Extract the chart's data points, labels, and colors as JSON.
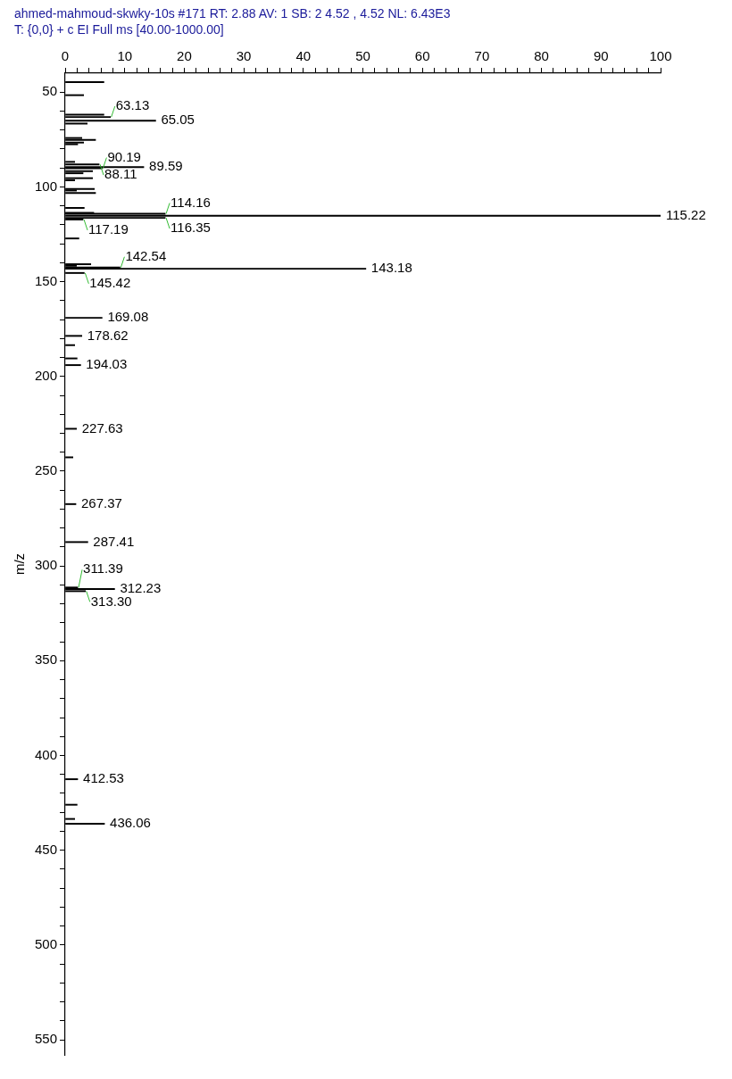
{
  "chart_data": {
    "type": "bar",
    "orientation": "horizontal",
    "title": "ahmed-mahmoud-skwky-10s #171 RT: 2.88 AV: 1 SB: 2 4.52 , 4.52 NL: 6.43E3",
    "subtitle": "T: {0,0} + c EI Full ms [40.00-1000.00]",
    "ylabel": "m/z",
    "color": "#000000",
    "grid": false,
    "legend": false,
    "x": [
      44.7,
      51.6,
      61.9,
      63.13,
      65.05,
      66.6,
      74.2,
      75.2,
      76.6,
      77.5,
      86.8,
      88.11,
      89.59,
      90.19,
      91.7,
      92.8,
      95.4,
      96.5,
      101.1,
      101.9,
      103.2,
      111.1,
      113.7,
      114.16,
      115.22,
      116.35,
      117.19,
      127.2,
      140.8,
      141.6,
      142.54,
      143.18,
      145.42,
      169.08,
      178.62,
      183.5,
      190.5,
      194.03,
      227.63,
      242.7,
      267.37,
      287.41,
      311.39,
      312.23,
      313.3,
      412.53,
      426.0,
      433.5,
      436.06
    ],
    "values": [
      6.5,
      3.1,
      6.5,
      7.6,
      15.2,
      3.7,
      2.8,
      5.1,
      3.1,
      2.1,
      1.6,
      5.7,
      13.2,
      6.2,
      4.6,
      3.0,
      4.6,
      1.6,
      4.9,
      1.9,
      5.1,
      3.2,
      4.8,
      16.8,
      100,
      16.8,
      3.0,
      2.3,
      4.3,
      1.9,
      9.2,
      50.5,
      3.2,
      6.2,
      2.8,
      1.6,
      2.0,
      2.6,
      1.9,
      1.3,
      1.8,
      3.8,
      2.1,
      8.3,
      3.4,
      2.1,
      2.0,
      1.6,
      6.6
    ],
    "annotations": [
      {
        "text": "63.13",
        "x": 7.6,
        "y": 63.13
      },
      {
        "text": "65.05",
        "x": 15.2,
        "y": 65.05
      },
      {
        "text": "88.11",
        "x": 5.7,
        "y": 88.11
      },
      {
        "text": "89.59",
        "x": 13.2,
        "y": 89.59
      },
      {
        "text": "90.19",
        "x": 6.2,
        "y": 90.19
      },
      {
        "text": "114.16",
        "x": 16.8,
        "y": 114.16
      },
      {
        "text": "115.22",
        "x": 100,
        "y": 115.22
      },
      {
        "text": "116.35",
        "x": 16.8,
        "y": 116.35
      },
      {
        "text": "117.19",
        "x": 3.0,
        "y": 117.19
      },
      {
        "text": "142.54",
        "x": 9.2,
        "y": 142.54
      },
      {
        "text": "143.18",
        "x": 50.5,
        "y": 143.18
      },
      {
        "text": "145.42",
        "x": 3.2,
        "y": 145.42
      },
      {
        "text": "169.08",
        "x": 6.2,
        "y": 169.08
      },
      {
        "text": "178.62",
        "x": 2.8,
        "y": 178.62
      },
      {
        "text": "194.03",
        "x": 2.6,
        "y": 194.03
      },
      {
        "text": "227.63",
        "x": 1.9,
        "y": 227.63
      },
      {
        "text": "267.37",
        "x": 1.8,
        "y": 267.37
      },
      {
        "text": "287.41",
        "x": 3.8,
        "y": 287.41
      },
      {
        "text": "311.39",
        "x": 2.1,
        "y": 311.39
      },
      {
        "text": "312.23",
        "x": 8.3,
        "y": 312.23
      },
      {
        "text": "313.30",
        "x": 3.4,
        "y": 313.3
      },
      {
        "text": "412.53",
        "x": 2.1,
        "y": 412.53
      },
      {
        "text": "436.06",
        "x": 6.6,
        "y": 436.06
      }
    ],
    "xlim": [
      0,
      100
    ],
    "xticks": [
      0,
      {
        "value": 2,
        "label": null
      },
      {
        "value": 4,
        "label": null
      },
      {
        "value": 6,
        "label": null
      },
      {
        "value": 8,
        "label": null
      },
      10,
      {
        "value": 12,
        "label": null
      },
      {
        "value": 14,
        "label": null
      },
      {
        "value": 16,
        "label": null
      },
      {
        "value": 18,
        "label": null
      },
      20,
      {
        "value": 22,
        "label": null
      },
      {
        "value": 24,
        "label": null
      },
      {
        "value": 26,
        "label": null
      },
      {
        "value": 28,
        "label": null
      },
      30,
      {
        "value": 32,
        "label": null
      },
      {
        "value": 34,
        "label": null
      },
      {
        "value": 36,
        "label": null
      },
      {
        "value": 38,
        "label": null
      },
      40,
      {
        "value": 42,
        "label": null
      },
      {
        "value": 44,
        "label": null
      },
      {
        "value": 46,
        "label": null
      },
      {
        "value": 48,
        "label": null
      },
      50,
      {
        "value": 52,
        "label": null
      },
      {
        "value": 54,
        "label": null
      },
      {
        "value": 56,
        "label": null
      },
      {
        "value": 58,
        "label": null
      },
      60,
      {
        "value": 62,
        "label": null
      },
      {
        "value": 64,
        "label": null
      },
      {
        "value": 66,
        "label": null
      },
      {
        "value": 68,
        "label": null
      },
      70,
      {
        "value": 72,
        "label": null
      },
      {
        "value": 74,
        "label": null
      },
      {
        "value": 76,
        "label": null
      },
      {
        "value": 78,
        "label": null
      },
      80,
      {
        "value": 82,
        "label": null
      },
      {
        "value": 84,
        "label": null
      },
      {
        "value": 86,
        "label": null
      },
      {
        "value": 88,
        "label": null
      },
      90,
      {
        "value": 92,
        "label": null
      },
      {
        "value": 94,
        "label": null
      },
      {
        "value": 96,
        "label": null
      },
      {
        "value": 98,
        "label": null
      },
      100
    ],
    "ylim": [
      558,
      40
    ],
    "yticks": [
      50,
      {
        "value": 60,
        "label": null
      },
      {
        "value": 70,
        "label": null
      },
      {
        "value": 80,
        "label": null
      },
      {
        "value": 90,
        "label": null
      },
      100,
      {
        "value": 110,
        "label": null
      },
      {
        "value": 120,
        "label": null
      },
      {
        "value": 130,
        "label": null
      },
      {
        "value": 140,
        "label": null
      },
      150,
      {
        "value": 160,
        "label": null
      },
      {
        "value": 170,
        "label": null
      },
      {
        "value": 180,
        "label": null
      },
      {
        "value": 190,
        "label": null
      },
      200,
      {
        "value": 210,
        "label": null
      },
      {
        "value": 220,
        "label": null
      },
      {
        "value": 230,
        "label": null
      },
      {
        "value": 240,
        "label": null
      },
      250,
      {
        "value": 260,
        "label": null
      },
      {
        "value": 270,
        "label": null
      },
      {
        "value": 280,
        "label": null
      },
      {
        "value": 290,
        "label": null
      },
      300,
      {
        "value": 310,
        "label": null
      },
      {
        "value": 320,
        "label": null
      },
      {
        "value": 330,
        "label": null
      },
      {
        "value": 340,
        "label": null
      },
      350,
      {
        "value": 360,
        "label": null
      },
      {
        "value": 370,
        "label": null
      },
      {
        "value": 380,
        "label": null
      },
      {
        "value": 390,
        "label": null
      },
      400,
      {
        "value": 410,
        "label": null
      },
      {
        "value": 420,
        "label": null
      },
      {
        "value": 430,
        "label": null
      },
      {
        "value": 440,
        "label": null
      },
      450,
      {
        "value": 460,
        "label": null
      },
      {
        "value": 470,
        "label": null
      },
      {
        "value": 480,
        "label": null
      },
      {
        "value": 490,
        "label": null
      },
      500,
      {
        "value": 510,
        "label": null
      },
      {
        "value": 520,
        "label": null
      },
      {
        "value": 530,
        "label": null
      },
      {
        "value": 540,
        "label": null
      },
      550
    ]
  }
}
